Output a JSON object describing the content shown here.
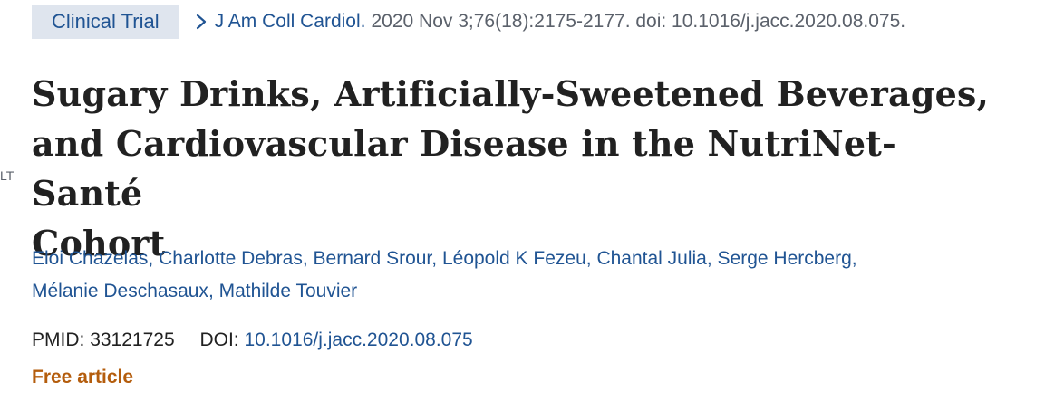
{
  "edge_fragment": "LT",
  "article_type": "Clinical Trial",
  "citation": {
    "journal": "J Am Coll Cardiol.",
    "details": "2020 Nov 3;76(18):2175-2177. doi: 10.1016/j.jacc.2020.08.075."
  },
  "title": {
    "line1": "Sugary Drinks, Artificially-Sweetened Beverages,",
    "line2": "and Cardiovascular Disease in the NutriNet-Santé",
    "line3": "Cohort"
  },
  "authors": [
    "Eloi Chazelas",
    "Charlotte Debras",
    "Bernard Srour",
    "Léopold K Fezeu",
    "Chantal Julia",
    "Serge Hercberg",
    "Mélanie Deschasaux",
    "Mathilde Touvier"
  ],
  "separator": ",",
  "identifiers": {
    "pmid_label": "PMID:",
    "pmid": "33121725",
    "doi_label": "DOI:",
    "doi": "10.1016/j.jacc.2020.08.075"
  },
  "free_article": "Free article",
  "colors": {
    "link": "#205493",
    "badge_bg": "#dfe5ee",
    "free_article": "#b45d0d",
    "text": "#212121",
    "muted": "#5b616b"
  },
  "icons": {
    "citation": "chevron-right-icon"
  }
}
